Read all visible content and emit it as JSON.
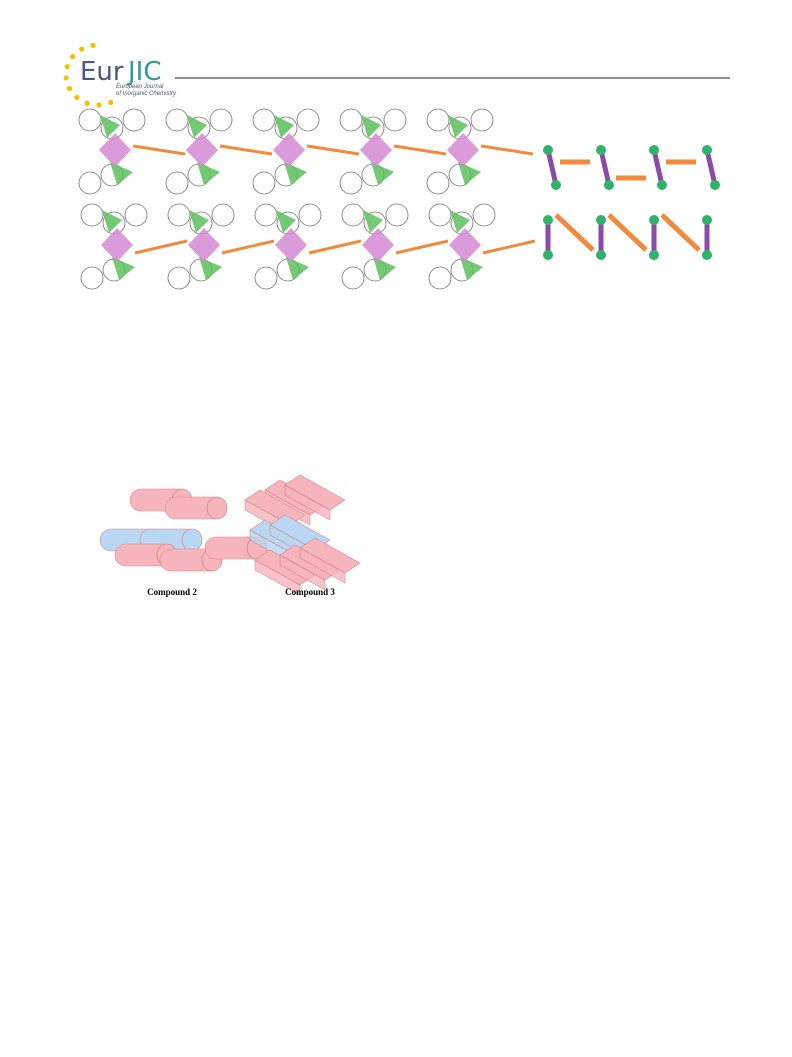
{
  "header": {
    "logo_main": "Eur",
    "logo_accent": "JIC",
    "journal_line1": "European Journal",
    "journal_line2": "of Inorganic Chemistry"
  },
  "figure": {
    "labels": [
      "Compound 2",
      "Compound 3"
    ]
  }
}
